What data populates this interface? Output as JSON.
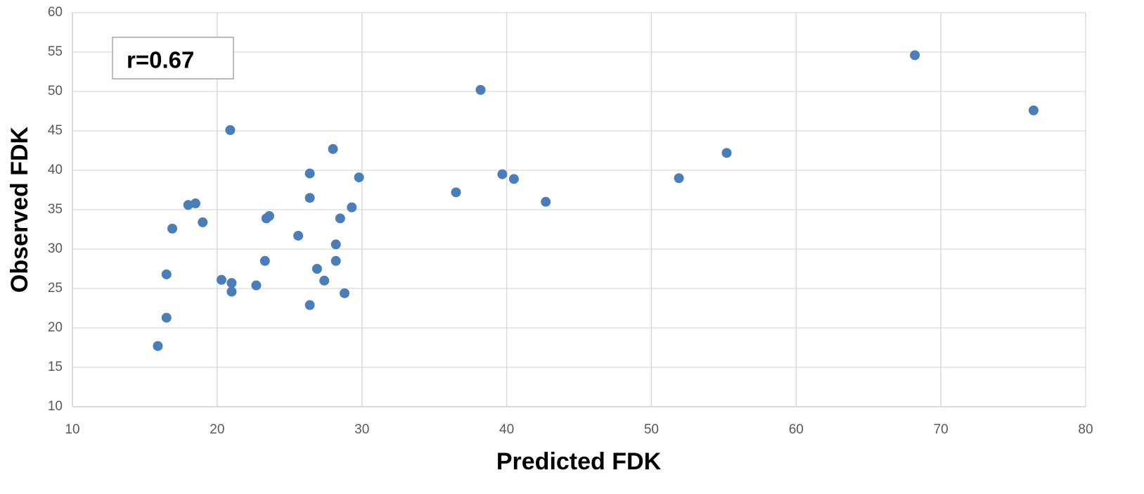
{
  "chart_data": {
    "type": "scatter",
    "x_label": "Predicted FDK",
    "y_label": "Observed FDK",
    "annotation": "r=0.67",
    "series": [
      {
        "color": "#4a7ebb",
        "x": [
          68.2,
          76.4,
          38.2,
          20.9,
          28.0,
          55.2,
          26.4,
          29.8,
          39.7,
          40.5,
          51.9,
          36.5,
          26.4,
          42.7,
          18.0,
          18.5,
          29.3,
          23.6,
          23.4,
          28.5,
          19.0,
          16.9,
          25.6,
          28.2,
          23.3,
          28.2,
          26.9,
          16.5,
          20.3,
          27.4,
          21.0,
          22.7,
          21.0,
          28.8,
          26.4,
          16.5,
          15.9
        ],
        "values": [
          54.6,
          47.6,
          50.2,
          45.1,
          42.7,
          42.2,
          39.6,
          39.1,
          39.5,
          38.9,
          39.0,
          37.2,
          36.5,
          36.0,
          35.6,
          35.8,
          35.3,
          34.2,
          33.9,
          33.9,
          33.4,
          32.6,
          31.7,
          30.6,
          28.5,
          28.5,
          27.5,
          26.8,
          26.1,
          26.0,
          25.7,
          25.4,
          24.6,
          24.4,
          22.9,
          21.3,
          17.7
        ]
      }
    ],
    "xlim": [
      10,
      80
    ],
    "xticks": [
      10,
      20,
      30,
      40,
      50,
      60,
      70,
      80
    ],
    "ylim": [
      10,
      60
    ],
    "yticks": [
      10,
      15,
      20,
      25,
      30,
      35,
      40,
      45,
      50,
      55,
      60
    ],
    "grid": true
  }
}
